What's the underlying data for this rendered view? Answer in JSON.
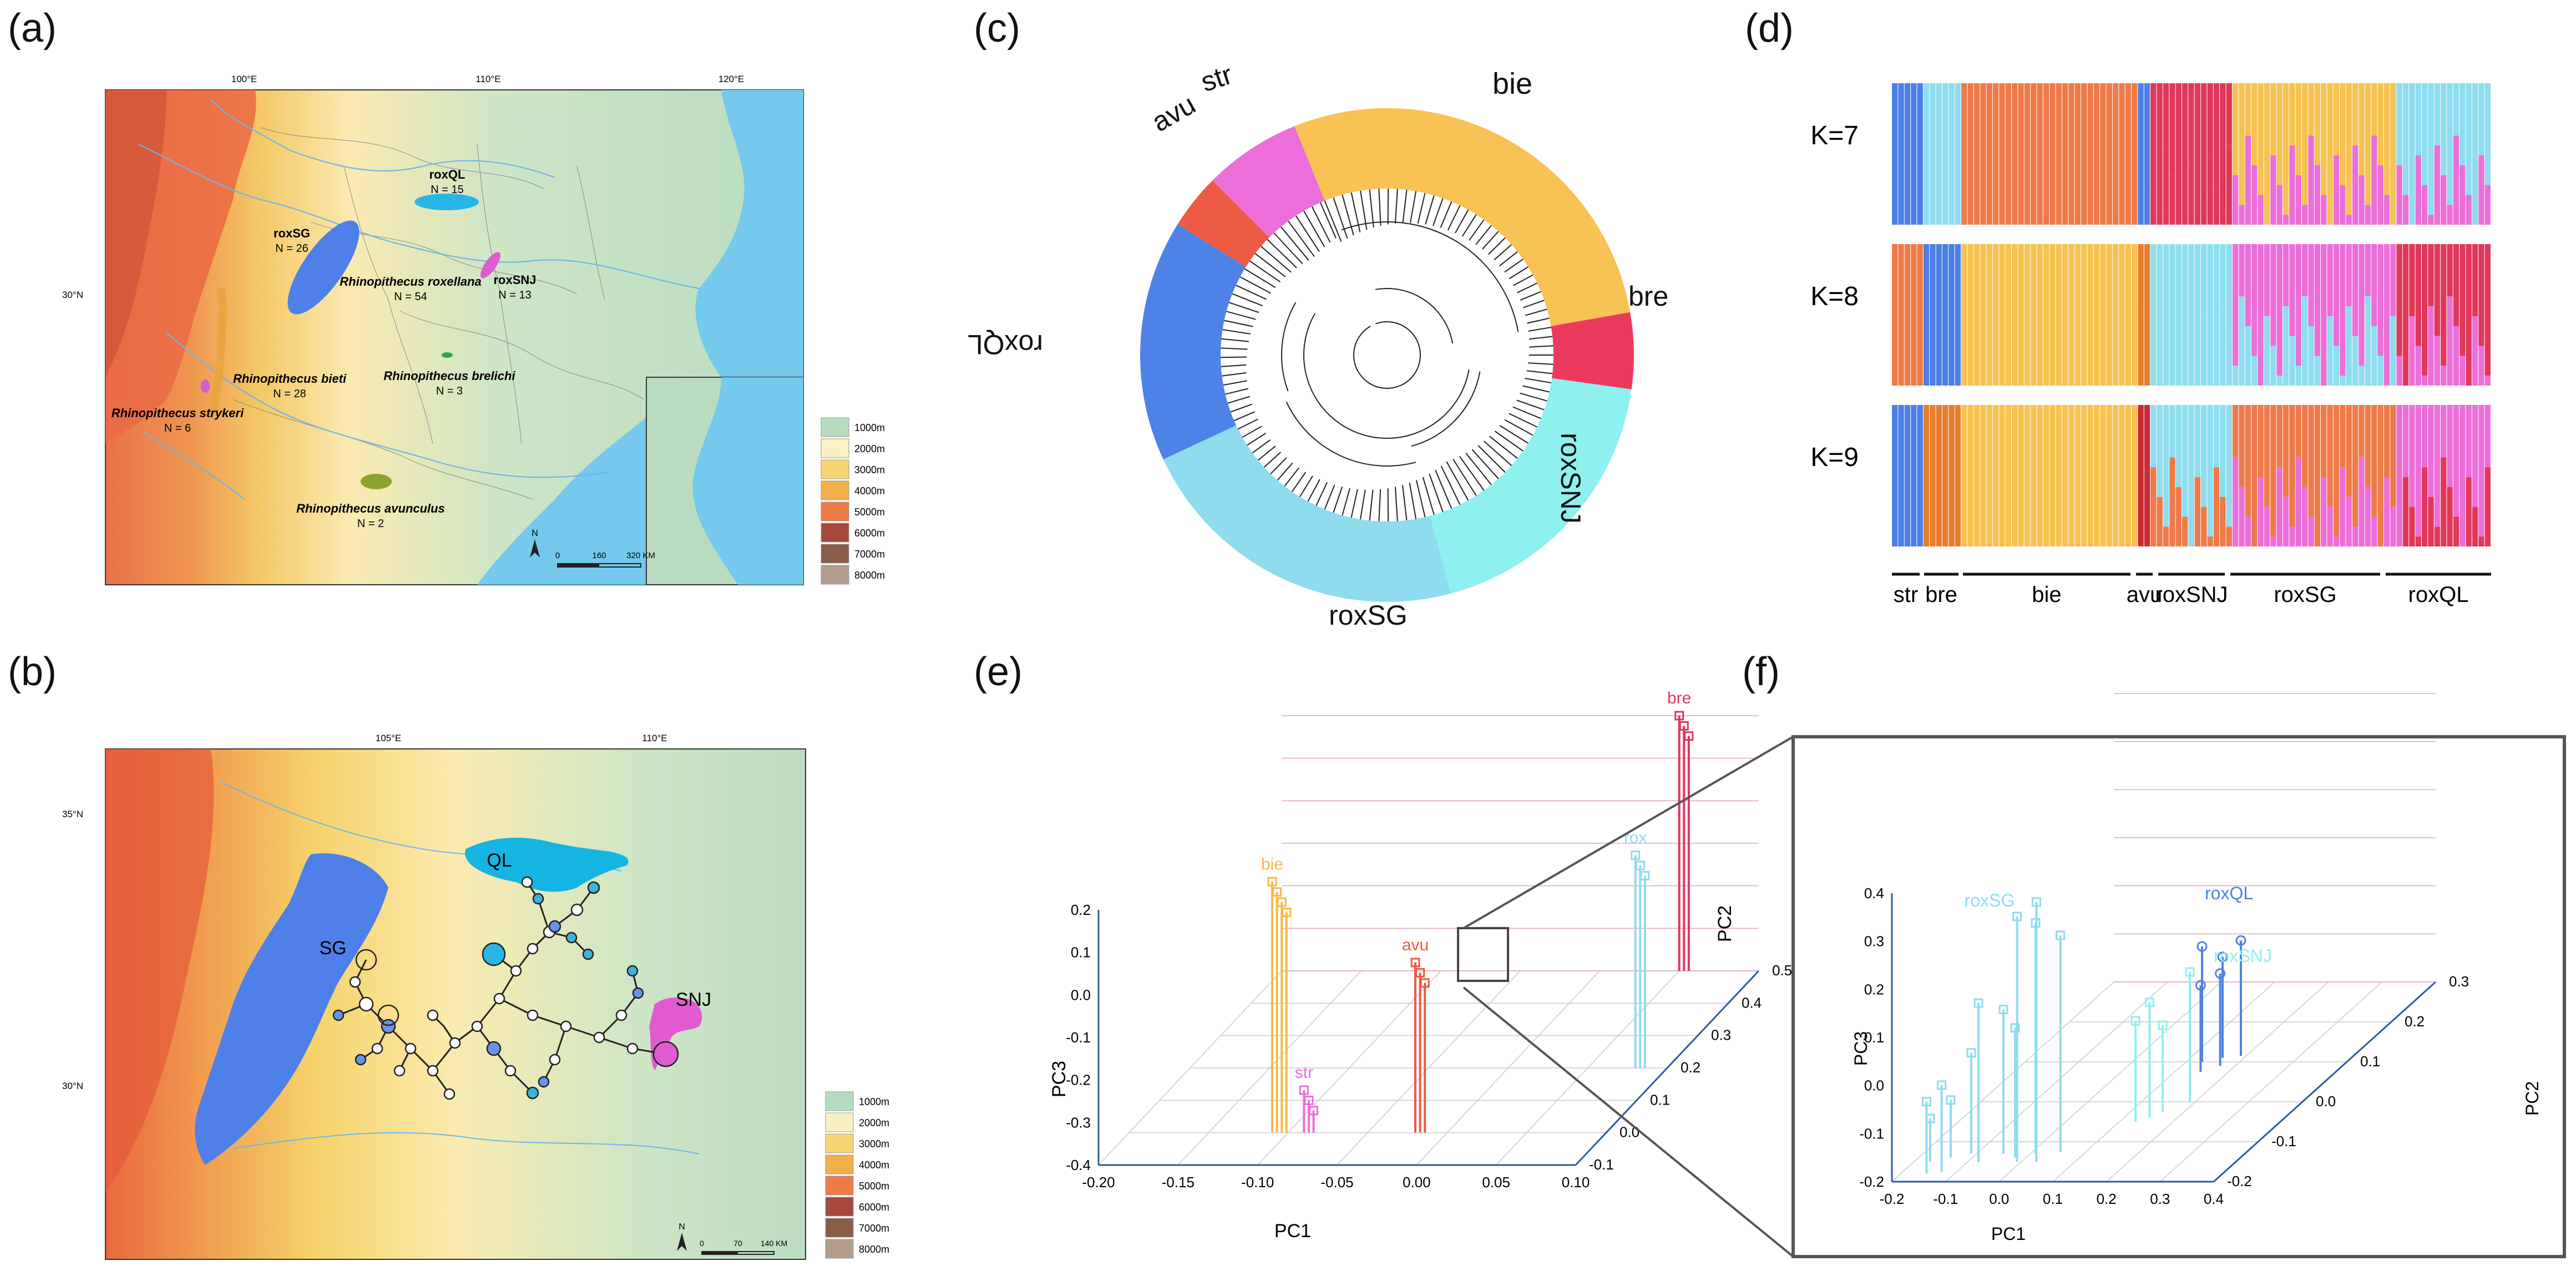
{
  "panels": {
    "a": "(a)",
    "b": "(b)",
    "c": "(c)",
    "d": "(d)",
    "e": "(e)",
    "f": "(f)"
  },
  "map_a": {
    "lon_ticks": [
      "100°E",
      "110°E",
      "120°E"
    ],
    "lat_tick": "30°N",
    "populations": [
      {
        "code": "roxQL",
        "n": "N = 15",
        "color": "#29b6e6"
      },
      {
        "code": "roxSG",
        "n": "N = 26",
        "color": "#4f7fe8"
      },
      {
        "code": "roxSNJ",
        "n": "N = 13",
        "color": "#e05bd0"
      }
    ],
    "species": [
      {
        "name": "Rhinopithecus roxellana",
        "n": "N = 54"
      },
      {
        "name": "Rhinopithecus brelichi",
        "n": "N = 3"
      },
      {
        "name": "Rhinopithecus bieti",
        "n": "N = 28"
      },
      {
        "name": "Rhinopithecus strykeri",
        "n": "N = 6"
      },
      {
        "name": "Rhinopithecus avunculus",
        "n": "N = 2"
      }
    ],
    "scale": [
      "0",
      "160",
      "320 KM"
    ],
    "north": "N"
  },
  "legend_elevation": [
    "1000m",
    "2000m",
    "3000m",
    "4000m",
    "5000m",
    "6000m",
    "7000m",
    "8000m"
  ],
  "legend_colors": [
    "#b6dcc0",
    "#fbf0c2",
    "#f7d574",
    "#f0b14a",
    "#ee7b48",
    "#a5493c",
    "#8a5c4a",
    "#b39c8e"
  ],
  "map_b": {
    "lon_ticks": [
      "105°E",
      "110°E"
    ],
    "lat_ticks": [
      "35°N",
      "30°N"
    ],
    "regions": [
      "SG",
      "QL",
      "SNJ"
    ],
    "scale": [
      "0",
      "70",
      "140 KM"
    ],
    "north": "N"
  },
  "tree_c": {
    "clades": [
      {
        "label": "bie",
        "color": "#f8c255"
      },
      {
        "label": "bre",
        "color": "#ec3a5f"
      },
      {
        "label": "roxSNJ",
        "color": "#8ff0f0"
      },
      {
        "label": "roxSG",
        "color": "#8fdcef"
      },
      {
        "label": "roxQL",
        "color": "#4e82e6"
      },
      {
        "label": "avu",
        "color": "#ee5a44"
      },
      {
        "label": "str",
        "color": "#ec6fd9"
      }
    ]
  },
  "admixture_d": {
    "rows": [
      "K=7",
      "K=8",
      "K=9"
    ],
    "groups": [
      "str",
      "bre",
      "bie",
      "avu",
      "roxSNJ",
      "roxSG",
      "roxQL"
    ]
  },
  "chart_data": [
    {
      "type": "scatter",
      "title": "(e)",
      "xlabel": "PC1",
      "ylabel": "PC3",
      "zlabel": "PC2",
      "x_ticks": [
        "-0.20",
        "-0.15",
        "-0.10",
        "-0.05",
        "0.00",
        "0.05",
        "0.10"
      ],
      "z_ticks": [
        "0.2",
        "0.1",
        "0.0",
        "-0.1",
        "-0.2",
        "-0.3",
        "-0.4"
      ],
      "y_ticks": [
        "-0.1",
        "0.0",
        "0.1",
        "0.2",
        "0.3",
        "0.4",
        "0.5"
      ],
      "groups": [
        {
          "label": "bie",
          "color": "#f6b94a",
          "pc1": -0.11,
          "pc2": 0.0,
          "pc3": 0.19
        },
        {
          "label": "avu",
          "color": "#ee5a44",
          "pc1": -0.02,
          "pc2": 0.0,
          "pc3": 0.0
        },
        {
          "label": "str",
          "color": "#ec6fd9",
          "pc1": -0.09,
          "pc2": 0.0,
          "pc3": -0.3
        },
        {
          "label": "rox",
          "color": "#8fdcef",
          "pc1": 0.08,
          "pc2": 0.2,
          "pc3": 0.1
        },
        {
          "label": "bre",
          "color": "#e2375c",
          "pc1": 0.05,
          "pc2": 0.5,
          "pc3": 0.2
        }
      ]
    },
    {
      "type": "scatter",
      "title": "(f)",
      "xlabel": "PC1",
      "ylabel": "PC3",
      "zlabel": "PC2",
      "x_ticks": [
        "-0.2",
        "-0.1",
        "0.0",
        "0.1",
        "0.2",
        "0.3",
        "0.4"
      ],
      "z_ticks": [
        "0.4",
        "0.3",
        "0.2",
        "0.1",
        "0.0",
        "-0.1",
        "-0.2"
      ],
      "y_ticks": [
        "-0.2",
        "-0.1",
        "0.0",
        "0.1",
        "0.2",
        "0.3"
      ],
      "groups": [
        {
          "label": "roxSG",
          "color": "#8fdcef"
        },
        {
          "label": "roxQL",
          "color": "#4e82e6"
        },
        {
          "label": "roxSNJ",
          "color": "#8ff0f0"
        }
      ]
    }
  ]
}
